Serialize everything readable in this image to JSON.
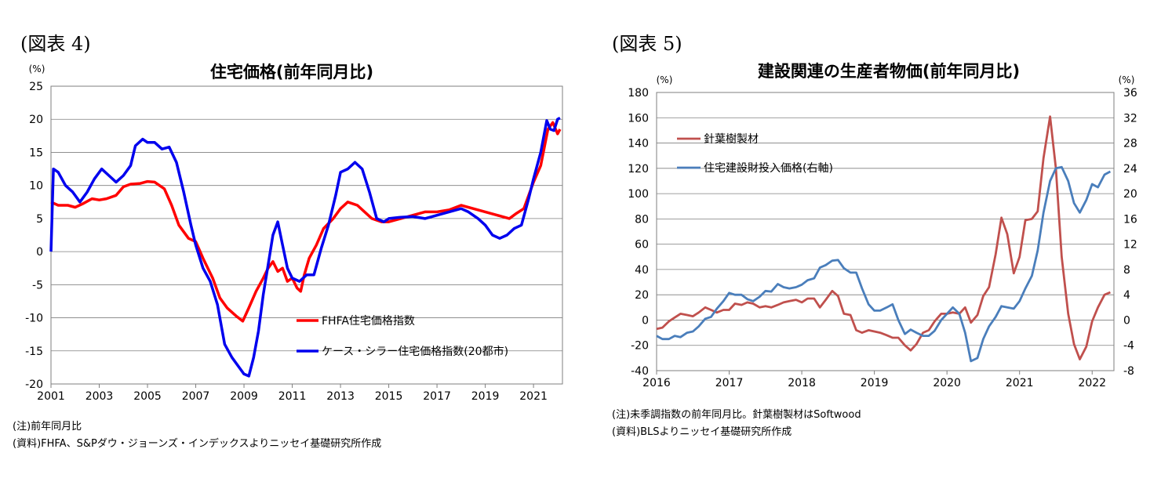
{
  "figures": [
    {
      "label": "(図表 4)",
      "notes": [
        "(注)前年同月比",
        "(資料)FHFA、S&Pダウ・ジョーンズ・インデックスよりニッセイ基礎研究所作成"
      ]
    },
    {
      "label": "(図表 5)",
      "notes": [
        "(注)未季調指数の前年同月比。針葉樹製材はSoftwood",
        "(資料)BLSよりニッセイ基礎研究所作成"
      ]
    }
  ],
  "chart_data": [
    {
      "type": "line",
      "title": "住宅価格(前年同月比)",
      "ylabel": "(%)",
      "xlim": [
        2001,
        2022.2
      ],
      "ylim": [
        -20,
        25
      ],
      "x_ticks": [
        "2001",
        "2003",
        "2005",
        "2007",
        "2009",
        "2011",
        "2013",
        "2015",
        "2017",
        "2019",
        "2021"
      ],
      "y_ticks": [
        "25",
        "20",
        "15",
        "10",
        "5",
        "0",
        "-5",
        "-10",
        "-15",
        "-20"
      ],
      "grid": true,
      "legend": "bottom-right",
      "colors": {
        "FHFA": "#ff0000",
        "CaseShiller": "#0000ee"
      },
      "series": [
        {
          "name": "FHFA住宅価格指数",
          "color": "#ff0000",
          "x": [
            2001.0,
            2001.3,
            2001.7,
            2002.0,
            2002.3,
            2002.7,
            2003.0,
            2003.3,
            2003.7,
            2004.0,
            2004.3,
            2004.7,
            2005.0,
            2005.3,
            2005.7,
            2006.0,
            2006.3,
            2006.7,
            2007.0,
            2007.3,
            2007.7,
            2008.0,
            2008.3,
            2008.7,
            2008.95,
            2009.2,
            2009.5,
            2009.8,
            2010.0,
            2010.2,
            2010.4,
            2010.6,
            2010.8,
            2011.0,
            2011.2,
            2011.35,
            2011.5,
            2011.7,
            2012.0,
            2012.3,
            2012.7,
            2013.0,
            2013.3,
            2013.7,
            2014.0,
            2014.3,
            2014.7,
            2015.0,
            2015.5,
            2016.0,
            2016.5,
            2017.0,
            2017.5,
            2018.0,
            2018.5,
            2019.0,
            2019.5,
            2020.0,
            2020.3,
            2020.6,
            2021.0,
            2021.3,
            2021.6,
            2021.8,
            2022.0,
            2022.1
          ],
          "y": [
            7.5,
            7.0,
            7.0,
            6.7,
            7.2,
            8.0,
            7.8,
            8.0,
            8.5,
            9.8,
            10.2,
            10.3,
            10.6,
            10.5,
            9.5,
            7.0,
            4.0,
            2.0,
            1.5,
            -1.0,
            -4.0,
            -7.0,
            -8.5,
            -9.8,
            -10.5,
            -8.5,
            -6.0,
            -4.0,
            -2.5,
            -1.5,
            -3.0,
            -2.5,
            -4.5,
            -4.0,
            -5.5,
            -6.0,
            -3.5,
            -1.0,
            1.0,
            3.5,
            5.0,
            6.5,
            7.5,
            7.0,
            6.0,
            5.0,
            4.5,
            4.5,
            5.0,
            5.5,
            6.0,
            6.0,
            6.3,
            7.0,
            6.5,
            6.0,
            5.5,
            5.0,
            5.8,
            6.5,
            10.5,
            13.0,
            18.5,
            19.5,
            17.8,
            18.5
          ]
        },
        {
          "name": "ケース・シラー住宅価格指数(20都市)",
          "color": "#0000ee",
          "x": [
            2001.0,
            2001.1,
            2001.3,
            2001.6,
            2001.9,
            2002.2,
            2002.5,
            2002.8,
            2003.1,
            2003.4,
            2003.7,
            2004.0,
            2004.3,
            2004.5,
            2004.8,
            2005.0,
            2005.3,
            2005.6,
            2005.9,
            2006.2,
            2006.5,
            2006.8,
            2007.0,
            2007.3,
            2007.6,
            2007.9,
            2008.2,
            2008.5,
            2008.8,
            2009.0,
            2009.2,
            2009.4,
            2009.6,
            2009.8,
            2010.0,
            2010.2,
            2010.4,
            2010.6,
            2010.8,
            2011.0,
            2011.3,
            2011.6,
            2011.9,
            2012.2,
            2012.5,
            2012.8,
            2013.0,
            2013.3,
            2013.6,
            2013.9,
            2014.2,
            2014.5,
            2014.8,
            2015.0,
            2015.5,
            2016.0,
            2016.5,
            2017.0,
            2017.5,
            2018.0,
            2018.3,
            2018.7,
            2019.0,
            2019.3,
            2019.6,
            2019.9,
            2020.2,
            2020.5,
            2020.8,
            2021.0,
            2021.3,
            2021.55,
            2021.7,
            2021.85,
            2022.0,
            2022.1
          ],
          "y": [
            0,
            12.5,
            12.0,
            10.0,
            9.0,
            7.5,
            9.0,
            11.0,
            12.5,
            11.5,
            10.5,
            11.5,
            13.0,
            16.0,
            17.0,
            16.5,
            16.5,
            15.5,
            15.8,
            13.5,
            9.0,
            4.0,
            1.0,
            -2.5,
            -4.5,
            -8.0,
            -14.0,
            -16.0,
            -17.5,
            -18.5,
            -18.8,
            -16.0,
            -12.0,
            -6.5,
            -2.0,
            2.5,
            4.5,
            1.0,
            -2.5,
            -4.0,
            -4.5,
            -3.5,
            -3.5,
            0.5,
            4.0,
            8.5,
            12.0,
            12.5,
            13.5,
            12.5,
            9.0,
            5.0,
            4.5,
            5.0,
            5.2,
            5.3,
            5.0,
            5.5,
            6.0,
            6.5,
            6.0,
            5.0,
            4.0,
            2.5,
            2.0,
            2.5,
            3.5,
            4.0,
            8.0,
            11.0,
            15.0,
            19.8,
            18.5,
            18.3,
            20.0,
            20.2
          ]
        }
      ]
    },
    {
      "type": "line",
      "title": "建設関連の生産者物価(前年同月比)",
      "ylabel": "(%)",
      "y2label": "(%)",
      "xlim": [
        2016,
        2022.3
      ],
      "ylim": [
        -40,
        180
      ],
      "y2lim": [
        -8,
        36
      ],
      "x_ticks": [
        "2016",
        "2017",
        "2018",
        "2019",
        "2020",
        "2021",
        "2022"
      ],
      "y_ticks": [
        "180",
        "160",
        "140",
        "120",
        "100",
        "80",
        "60",
        "40",
        "20",
        "0",
        "-20",
        "-40"
      ],
      "y2_ticks": [
        "36",
        "32",
        "28",
        "24",
        "20",
        "16",
        "12",
        "8",
        "4",
        "0",
        "-4",
        "-8"
      ],
      "grid": true,
      "legend": "top-left",
      "series": [
        {
          "name": "針葉樹製材",
          "axis": "left",
          "color": "#c0504d",
          "x": [
            2016.0,
            2016.08,
            2016.17,
            2016.25,
            2016.33,
            2016.42,
            2016.5,
            2016.58,
            2016.67,
            2016.75,
            2016.83,
            2016.92,
            2017.0,
            2017.08,
            2017.17,
            2017.25,
            2017.33,
            2017.42,
            2017.5,
            2017.58,
            2017.67,
            2017.75,
            2017.83,
            2017.92,
            2018.0,
            2018.08,
            2018.17,
            2018.25,
            2018.33,
            2018.42,
            2018.5,
            2018.58,
            2018.67,
            2018.75,
            2018.83,
            2018.92,
            2019.0,
            2019.08,
            2019.17,
            2019.25,
            2019.33,
            2019.42,
            2019.5,
            2019.58,
            2019.67,
            2019.75,
            2019.83,
            2019.92,
            2020.0,
            2020.08,
            2020.17,
            2020.25,
            2020.33,
            2020.42,
            2020.5,
            2020.58,
            2020.67,
            2020.75,
            2020.83,
            2020.92,
            2021.0,
            2021.08,
            2021.17,
            2021.25,
            2021.33,
            2021.42,
            2021.5,
            2021.58,
            2021.67,
            2021.75,
            2021.83,
            2021.92,
            2022.0,
            2022.08,
            2022.17,
            2022.25
          ],
          "y": [
            -7,
            -6,
            -1,
            2,
            5,
            4,
            3,
            6,
            10,
            8,
            6,
            8,
            8,
            13,
            12,
            14,
            13,
            10,
            11,
            10,
            12,
            14,
            15,
            16,
            14,
            17,
            17,
            10,
            16,
            23,
            19,
            5,
            4,
            -8,
            -10,
            -8,
            -9,
            -10,
            -12,
            -14,
            -14,
            -20,
            -24,
            -19,
            -10,
            -8,
            -1,
            5,
            5,
            6,
            5,
            10,
            -2,
            4,
            19,
            26,
            52,
            81,
            68,
            37,
            50,
            79,
            80,
            86,
            128,
            161,
            120,
            50,
            5,
            -19,
            -31,
            -21,
            -1,
            10,
            20,
            22
          ]
        },
        {
          "name": "住宅建設財投入価格(右軸)",
          "axis": "right",
          "color": "#4a7ebb",
          "x": [
            2016.0,
            2016.08,
            2016.17,
            2016.25,
            2016.33,
            2016.42,
            2016.5,
            2016.58,
            2016.67,
            2016.75,
            2016.83,
            2016.92,
            2017.0,
            2017.08,
            2017.17,
            2017.25,
            2017.33,
            2017.42,
            2017.5,
            2017.58,
            2017.67,
            2017.75,
            2017.83,
            2017.92,
            2018.0,
            2018.08,
            2018.17,
            2018.25,
            2018.33,
            2018.42,
            2018.5,
            2018.58,
            2018.67,
            2018.75,
            2018.83,
            2018.92,
            2019.0,
            2019.08,
            2019.17,
            2019.25,
            2019.33,
            2019.42,
            2019.5,
            2019.58,
            2019.67,
            2019.75,
            2019.83,
            2019.92,
            2020.0,
            2020.08,
            2020.17,
            2020.25,
            2020.33,
            2020.42,
            2020.5,
            2020.58,
            2020.67,
            2020.75,
            2020.83,
            2020.92,
            2021.0,
            2021.08,
            2021.17,
            2021.25,
            2021.33,
            2021.42,
            2021.5,
            2021.58,
            2021.67,
            2021.75,
            2021.83,
            2021.92,
            2022.0,
            2022.08,
            2022.17,
            2022.25
          ],
          "y": [
            -2.5,
            -3.0,
            -3.0,
            -2.5,
            -2.7,
            -2.0,
            -1.8,
            -1.0,
            0.2,
            0.5,
            1.8,
            3.0,
            4.3,
            4.0,
            4.0,
            3.3,
            3.0,
            3.7,
            4.6,
            4.5,
            5.7,
            5.2,
            5.0,
            5.2,
            5.6,
            6.3,
            6.6,
            8.3,
            8.7,
            9.4,
            9.5,
            8.2,
            7.5,
            7.5,
            5.0,
            2.5,
            1.5,
            1.5,
            2.0,
            2.5,
            0.0,
            -2.2,
            -1.5,
            -2.0,
            -2.5,
            -2.5,
            -1.7,
            0.0,
            1.0,
            2.0,
            1.0,
            -2.0,
            -6.5,
            -6.0,
            -3.0,
            -1.0,
            0.5,
            2.2,
            2.0,
            1.8,
            3.0,
            5.0,
            7.0,
            11.0,
            17.0,
            22.0,
            24.0,
            24.2,
            22.0,
            18.5,
            17.0,
            19.0,
            21.5,
            21.0,
            23.0,
            23.5
          ]
        }
      ]
    }
  ]
}
